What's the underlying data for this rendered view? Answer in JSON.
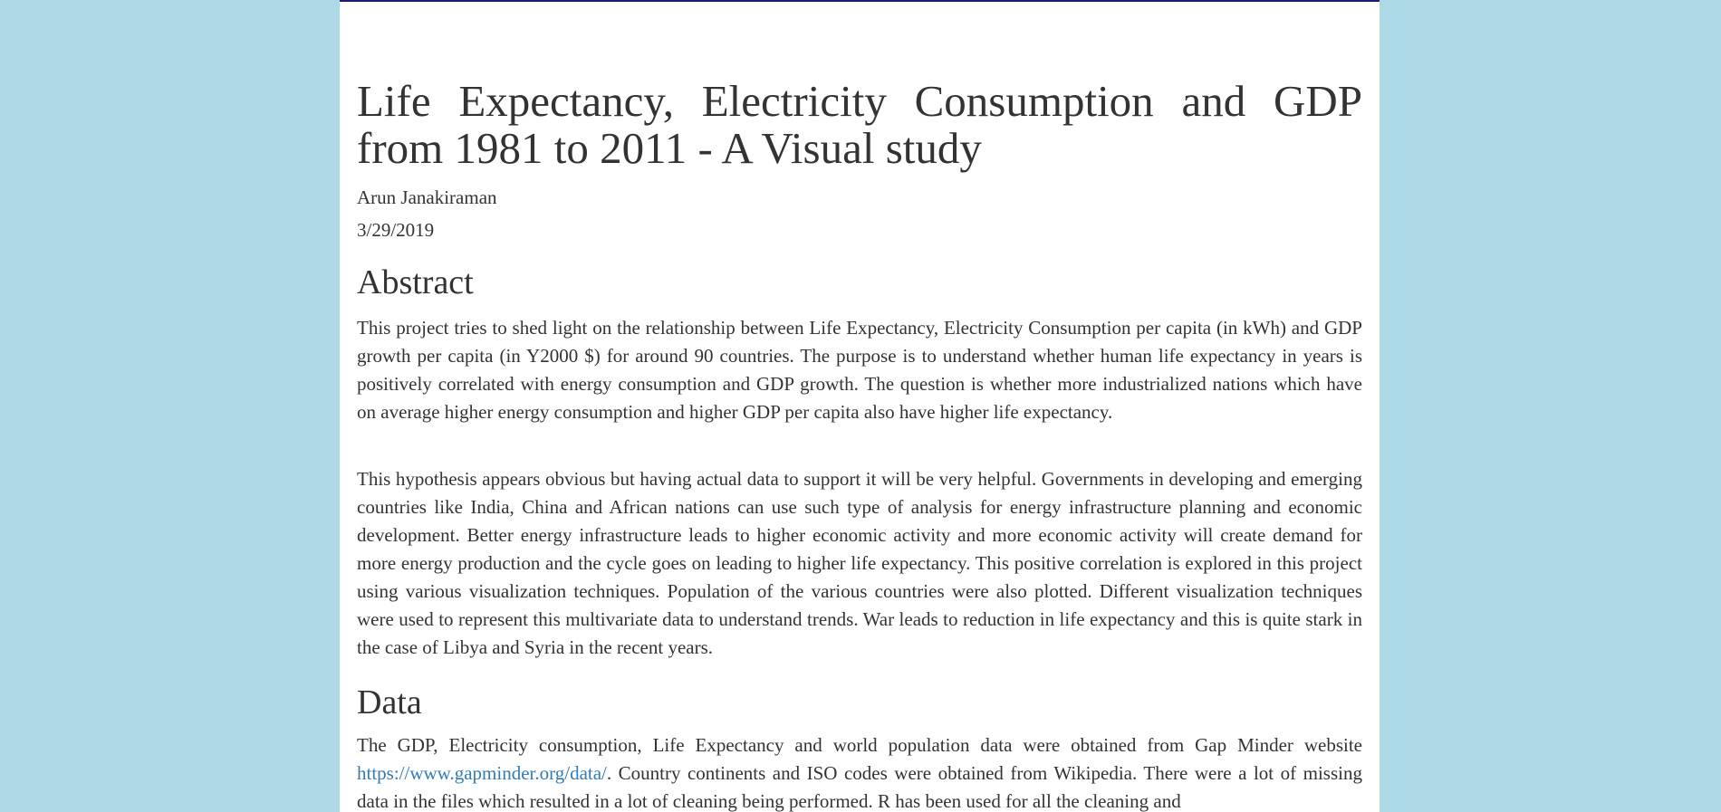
{
  "document": {
    "title": "Life Expectancy, Electricity Consumption and GDP from 1981 to 2011 - A Visual study",
    "author": "Arun Janakiraman",
    "date": "3/29/2019"
  },
  "abstract": {
    "heading": "Abstract",
    "paragraph1": "This project tries to shed light on the relationship between Life Expectancy, Electricity Consumption per capita (in kWh) and GDP growth per capita (in Y2000 $) for around 90 countries. The purpose is to understand whether human life expectancy in years is positively correlated with energy consumption and GDP growth. The question is whether more industrialized nations which have on average higher energy consumption and higher GDP per capita also have higher life expectancy.",
    "paragraph2": "This hypothesis appears obvious but having actual data to support it will be very helpful. Governments in developing and emerging countries like India, China and African nations can use such type of analysis for energy infrastructure planning and economic development. Better energy infrastructure leads to higher economic activity and more economic activity will create demand for more energy production and the cycle goes on leading to higher life expectancy. This positive correlation is explored in this project using various visualization techniques. Population of the various countries were also plotted. Different visualization techniques were used to represent this multivariate data to understand trends. War leads to reduction in life expectancy and this is quite stark in the case of Libya and Syria in the recent years."
  },
  "data_section": {
    "heading": "Data",
    "text_before_link": "The GDP, Electricity consumption, Life Expectancy and world population data were obtained from Gap Minder website ",
    "link_text": "https://www.gapminder.org/data/",
    "text_after_link": ". Country continents and ISO codes were obtained from Wikipedia. There were a lot of missing data in the files which resulted in a lot of cleaning being performed. R has been used for all the cleaning and"
  },
  "colors": {
    "background": "#add8e6",
    "page": "#ffffff",
    "text": "#333333",
    "link": "#337ab7",
    "top_border": "#1a1a6e"
  }
}
